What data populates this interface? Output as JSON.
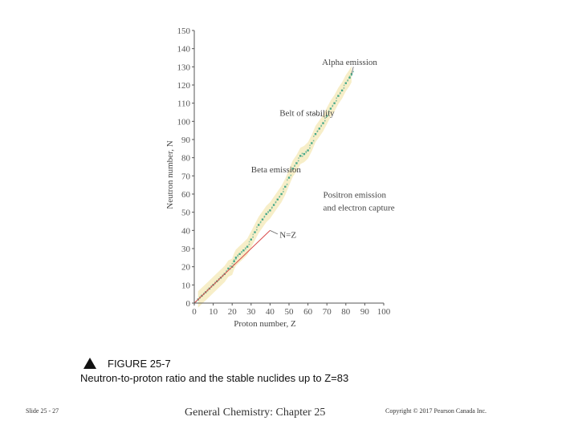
{
  "chart_data": {
    "type": "scatter",
    "xlabel": "Proton number, Z",
    "ylabel": "Neutron number, N",
    "xlim": [
      0,
      100
    ],
    "ylim": [
      0,
      150
    ],
    "xticks": [
      0,
      10,
      20,
      30,
      40,
      50,
      60,
      70,
      80,
      90,
      100
    ],
    "yticks": [
      0,
      10,
      20,
      30,
      40,
      50,
      60,
      70,
      80,
      90,
      100,
      110,
      120,
      130,
      140,
      150
    ],
    "grid": false,
    "series": [
      {
        "name": "Stable nuclides (belt of stability)",
        "points": [
          [
            2,
            2
          ],
          [
            4,
            4
          ],
          [
            6,
            6
          ],
          [
            8,
            8
          ],
          [
            10,
            10
          ],
          [
            12,
            12
          ],
          [
            14,
            14
          ],
          [
            16,
            16
          ],
          [
            18,
            19
          ],
          [
            20,
            20
          ],
          [
            21,
            23
          ],
          [
            22,
            25
          ],
          [
            24,
            27
          ],
          [
            26,
            29
          ],
          [
            28,
            31
          ],
          [
            30,
            35
          ],
          [
            32,
            39
          ],
          [
            34,
            43
          ],
          [
            36,
            46
          ],
          [
            38,
            49
          ],
          [
            40,
            51
          ],
          [
            42,
            54
          ],
          [
            44,
            57
          ],
          [
            46,
            60
          ],
          [
            48,
            64
          ],
          [
            50,
            69
          ],
          [
            52,
            74
          ],
          [
            54,
            77
          ],
          [
            56,
            81
          ],
          [
            58,
            82
          ],
          [
            60,
            84
          ],
          [
            62,
            88
          ],
          [
            64,
            93
          ],
          [
            66,
            96
          ],
          [
            68,
            99
          ],
          [
            70,
            103
          ],
          [
            72,
            107
          ],
          [
            74,
            110
          ],
          [
            76,
            114
          ],
          [
            78,
            117
          ],
          [
            80,
            121
          ],
          [
            82,
            124
          ],
          [
            83,
            126
          ]
        ]
      },
      {
        "name": "N = Z",
        "x": [
          0,
          40
        ],
        "y": [
          0,
          40
        ]
      }
    ],
    "annotations": [
      {
        "text": "Alpha emission",
        "x": 82,
        "y": 131
      },
      {
        "text": "Belt of stability",
        "x": 45,
        "y": 103
      },
      {
        "text": "Beta emission",
        "x": 30,
        "y": 72
      },
      {
        "text": "Positron emission",
        "x": 68,
        "y": 58
      },
      {
        "text": "and electron capture",
        "x": 68,
        "y": 51
      },
      {
        "text": "N=Z",
        "x": 45,
        "y": 36
      }
    ]
  },
  "caption": {
    "figure_label": "FIGURE 25-7",
    "title": "Neutron-to-proton ratio and the stable nuclides up to Z=83"
  },
  "footer": {
    "slide": "Slide 25 - 27",
    "course": "General Chemistry: Chapter 25",
    "copyright": "Copyright © 2017 Pearson Canada Inc."
  },
  "colors": {
    "band": "#f6ecc2",
    "nuclide": "#46a88a",
    "nz_line": "#d94a4a",
    "axis": "#555555"
  }
}
